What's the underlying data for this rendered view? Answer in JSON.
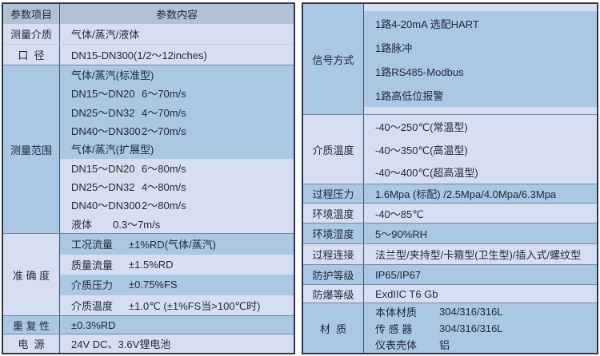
{
  "colors": {
    "blue": "#aac7e4",
    "light": "#d6dff1",
    "header": "#b2c2d6",
    "border": "#2c3950",
    "vline": "#3f5069",
    "divider_strong": "#7288a3",
    "divider_soft": "#c2cfe2",
    "text": "#1f2737"
  },
  "left_table": {
    "header": {
      "col1": "参数项目",
      "col2": "参数内容"
    },
    "sections": [
      {
        "label": "测量介质",
        "tone": "light",
        "div": "none",
        "rows": [
          {
            "t": "气体/蒸汽/液体",
            "tone": "light"
          }
        ]
      },
      {
        "label": "口  径",
        "tone": "light",
        "div": "soft",
        "rows": [
          {
            "t": "DN15-DN300(1/2～12inches)",
            "tone": "light"
          }
        ]
      },
      {
        "label": "测量范围",
        "tone": "blue",
        "div": "strong",
        "rows": [
          {
            "t": "气体/蒸汽(标准型)",
            "tone": "blue"
          },
          {
            "a": "DN15～DN20",
            "b": "6～70m/s",
            "tone": "blue"
          },
          {
            "a": "DN25～DN32",
            "b": "4～70m/s",
            "tone": "blue"
          },
          {
            "a": "DN40～DN300",
            "b": "2～70m/s",
            "tone": "blue"
          },
          {
            "t": "气体/蒸汽(扩展型)",
            "tone": "blue"
          },
          {
            "a": "DN15～DN20",
            "b": "6～80m/s",
            "tone": "light"
          },
          {
            "a": "DN25～DN32",
            "b": "4～80m/s",
            "tone": "light"
          },
          {
            "a": "DN40～DN300",
            "b": "2～80m/s",
            "tone": "light"
          },
          {
            "t": "液体　　0.3～7m/s",
            "tone": "light"
          }
        ]
      },
      {
        "label": "准 确 度",
        "tone": "light",
        "div": "strong",
        "rows": [
          {
            "a": "工况流量",
            "b": "±1%RD(气体/蒸汽)",
            "tone": "blue"
          },
          {
            "a": "质量流量",
            "b": "±1.5%RD",
            "tone": "light"
          },
          {
            "a": "介质压力",
            "b": "±0.75%FS",
            "tone": "blue"
          },
          {
            "a": "介质温度",
            "b": "±1.0℃ (±1%FS当>100℃时)",
            "tone": "light"
          }
        ]
      },
      {
        "label": "重 复 性",
        "tone": "blue",
        "div": "strong",
        "rows": [
          {
            "t": "±0.3%RD",
            "tone": "blue"
          }
        ]
      },
      {
        "label": "电  源",
        "tone": "light",
        "div": "strong",
        "rows": [
          {
            "t": "24V DC、3.6V锂电池",
            "tone": "light"
          }
        ]
      }
    ]
  },
  "right_table": {
    "sections": [
      {
        "label": "信号方式",
        "tone": "blue",
        "div": "none",
        "rows": [
          {
            "t": "1路4-20mA 选配HART",
            "tone": "blue"
          },
          {
            "t": "1路脉冲",
            "tone": "blue"
          },
          {
            "t": "1路RS485-Modbus",
            "tone": "blue"
          },
          {
            "t": "1路高低位报警",
            "tone": "blue"
          }
        ]
      },
      {
        "label": "介质温度",
        "tone": "light",
        "div": "strong",
        "rows": [
          {
            "t": "-40～250℃(常温型)",
            "tone": "light"
          },
          {
            "t": "-40～350℃(高温型)",
            "tone": "light"
          },
          {
            "t": "-40～400℃(超高温型)",
            "tone": "light"
          }
        ]
      },
      {
        "label": "过程压力",
        "tone": "blue",
        "div": "strong",
        "rows": [
          {
            "t": "1.6Mpa (标配) /2.5Mpa/4.0Mpa/6.3Mpa",
            "tone": "blue"
          }
        ]
      },
      {
        "label": "环境温度",
        "tone": "light",
        "div": "strong",
        "rows": [
          {
            "t": "-40～85℃",
            "tone": "light"
          }
        ]
      },
      {
        "label": "环境湿度",
        "tone": "blue",
        "div": "strong",
        "rows": [
          {
            "t": "5～90%RH",
            "tone": "blue"
          }
        ]
      },
      {
        "label": "过程连接",
        "tone": "light",
        "div": "strong",
        "rows": [
          {
            "t": "法兰型/夹持型/卡箍型(卫生型)/插入式/螺纹型",
            "tone": "light"
          }
        ]
      },
      {
        "label": "防护等级",
        "tone": "blue",
        "div": "strong",
        "rows": [
          {
            "t": "IP65/IP67",
            "tone": "blue"
          }
        ]
      },
      {
        "label": "防爆等级",
        "tone": "light",
        "div": "strong",
        "rows": [
          {
            "t": "ExdIIC T6 Gb",
            "tone": "light"
          }
        ]
      },
      {
        "label": "材  质",
        "tone": "blue",
        "div": "strong",
        "rows": [
          {
            "a": "本体材质",
            "b": "304/316/316L",
            "tone": "blue"
          },
          {
            "a": "传 感 器",
            "b": "304/316/316L",
            "tone": "blue"
          },
          {
            "a": "仪表壳体",
            "b": "铝",
            "tone": "blue"
          }
        ]
      }
    ]
  }
}
